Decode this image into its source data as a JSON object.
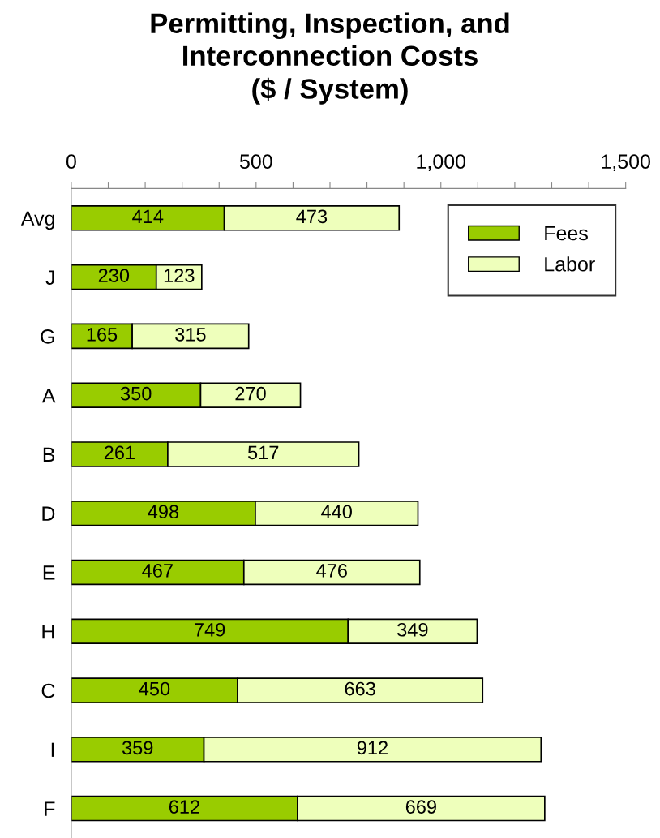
{
  "chart_data": {
    "type": "bar",
    "orientation": "horizontal",
    "stacked": true,
    "title": "Permitting, Inspection, and\nInterconnection Costs\n($ / System)",
    "categories": [
      "Avg",
      "J",
      "G",
      "A",
      "B",
      "D",
      "E",
      "H",
      "C",
      "I",
      "F"
    ],
    "series": [
      {
        "name": "Fees",
        "color": "#99cc00",
        "values": [
          414,
          230,
          165,
          350,
          261,
          498,
          467,
          749,
          450,
          359,
          612
        ]
      },
      {
        "name": "Labor",
        "color": "#eeffbb",
        "values": [
          473,
          123,
          315,
          270,
          517,
          440,
          476,
          349,
          663,
          912,
          669
        ]
      }
    ],
    "xlim": [
      0,
      1500
    ],
    "xticks": [
      0,
      {
        "value": 100,
        "label": null
      },
      {
        "value": 200,
        "label": null
      },
      {
        "value": 300,
        "label": null
      },
      {
        "value": 400,
        "label": null
      },
      500,
      {
        "value": 600,
        "label": null
      },
      {
        "value": 700,
        "label": null
      },
      {
        "value": 800,
        "label": null
      },
      {
        "value": 900,
        "label": null
      },
      {
        "value": 1000,
        "label": "1,000"
      },
      {
        "value": 1100,
        "label": null
      },
      {
        "value": 1200,
        "label": null
      },
      {
        "value": 1300,
        "label": null
      },
      {
        "value": 1400,
        "label": null
      },
      {
        "value": 1500,
        "label": "1,500"
      }
    ],
    "data_labels": true,
    "legend": "top right",
    "grid": false
  }
}
